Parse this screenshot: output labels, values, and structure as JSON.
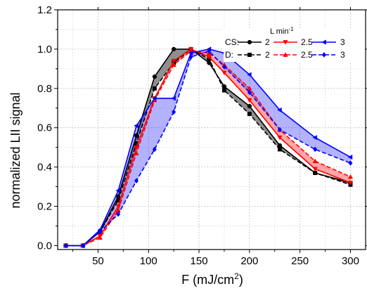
{
  "chart_data": {
    "type": "line",
    "title": "",
    "xlabel": "F (mJ/cm²)",
    "xlabel_main": "F (mJ/cm",
    "xlabel_sup": "2",
    "xlabel_end": ")",
    "ylabel": "normalized LII signal",
    "xlim": [
      10,
      315
    ],
    "ylim": [
      -0.02,
      1.2
    ],
    "xticks": [
      50,
      100,
      150,
      200,
      250,
      300
    ],
    "xtick_labels": [
      "50",
      "100",
      "150",
      "200",
      "250",
      "300"
    ],
    "yticks": [
      0.0,
      0.2,
      0.4,
      0.6,
      0.8,
      1.0,
      1.2
    ],
    "ytick_labels": [
      "0.0",
      "0.2",
      "0.4",
      "0.6",
      "0.8",
      "1.0",
      "1.2"
    ],
    "grid": true,
    "legend": {
      "placement": "top-right",
      "unit_label": "L min",
      "unit_sup": "-1",
      "rows": [
        {
          "label": "CS:",
          "entries": [
            "2",
            "2.5",
            "3"
          ]
        },
        {
          "label": "D:",
          "entries": [
            "2",
            "2.5",
            "3"
          ]
        }
      ]
    },
    "series": [
      {
        "name": "2",
        "group": "CS",
        "color": "#000000",
        "dash": "solid",
        "marker": "circle",
        "x": [
          18,
          35,
          52,
          70,
          88,
          106,
          125,
          142,
          160,
          175,
          200,
          230,
          265,
          300
        ],
        "y": [
          0.0,
          0.0,
          0.07,
          0.25,
          0.56,
          0.86,
          1.0,
          1.0,
          0.93,
          0.81,
          0.71,
          0.51,
          0.37,
          0.32
        ]
      },
      {
        "name": "2",
        "group": "D",
        "color": "#000000",
        "dash": "dash",
        "marker": "square",
        "x": [
          18,
          35,
          52,
          70,
          88,
          106,
          125,
          142,
          160,
          175,
          200,
          230,
          265,
          300
        ],
        "y": [
          0.0,
          0.0,
          0.07,
          0.23,
          0.52,
          0.8,
          0.93,
          1.0,
          0.95,
          0.79,
          0.67,
          0.49,
          0.37,
          0.31
        ]
      },
      {
        "name": "2.5",
        "group": "CS",
        "color": "#ff0000",
        "dash": "solid",
        "marker": "triangle-down",
        "x": [
          18,
          35,
          52,
          70,
          88,
          106,
          125,
          142,
          160,
          175,
          200,
          230,
          265,
          300
        ],
        "y": [
          0.0,
          0.0,
          0.05,
          0.2,
          0.5,
          0.75,
          0.94,
          1.0,
          0.96,
          0.88,
          0.74,
          0.55,
          0.39,
          0.32
        ]
      },
      {
        "name": "2.5",
        "group": "D",
        "color": "#ff0000",
        "dash": "dash",
        "marker": "triangle-up",
        "x": [
          18,
          35,
          52,
          70,
          88,
          106,
          125,
          142,
          160,
          175,
          200,
          230,
          265,
          300
        ],
        "y": [
          0.0,
          0.0,
          0.04,
          0.18,
          0.47,
          0.74,
          0.92,
          0.99,
          0.98,
          0.92,
          0.8,
          0.59,
          0.43,
          0.35
        ]
      },
      {
        "name": "3",
        "group": "CS",
        "color": "#0000ff",
        "dash": "solid",
        "marker": "triangle-left",
        "x": [
          18,
          35,
          52,
          70,
          88,
          106,
          125,
          142,
          160,
          175,
          200,
          230,
          265,
          300
        ],
        "y": [
          0.0,
          0.0,
          0.08,
          0.28,
          0.61,
          0.75,
          0.75,
          0.98,
          1.0,
          0.98,
          0.87,
          0.69,
          0.55,
          0.45
        ]
      },
      {
        "name": "3",
        "group": "D",
        "color": "#0000ff",
        "dash": "dash",
        "marker": "diamond",
        "x": [
          18,
          35,
          52,
          70,
          88,
          106,
          125,
          142,
          160,
          175,
          200,
          230,
          265,
          300
        ],
        "y": [
          0.0,
          0.0,
          0.07,
          0.16,
          0.33,
          0.49,
          0.68,
          0.96,
          0.99,
          0.91,
          0.78,
          0.59,
          0.49,
          0.42
        ]
      }
    ],
    "bands": [
      {
        "between": [
          0,
          1
        ],
        "color": "#333333",
        "opacity": 0.55
      },
      {
        "between": [
          2,
          3
        ],
        "color": "#ff0000",
        "opacity": 0.35
      },
      {
        "between": [
          4,
          5
        ],
        "color": "#0000ff",
        "opacity": 0.3
      }
    ]
  }
}
